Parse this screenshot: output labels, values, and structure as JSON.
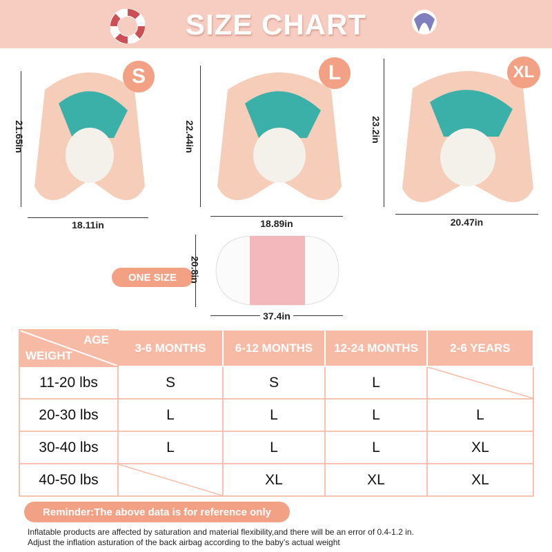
{
  "header": {
    "title": "SIZE CHART",
    "left_icon": "life-ring-icon",
    "right_icon": "beach-ball-icon"
  },
  "colors": {
    "banner": "#f7cdc1",
    "accent": "#f3a184",
    "table_border": "#f7c2b0"
  },
  "products": [
    {
      "size": "S",
      "height": "21.65in",
      "width": "18.11in"
    },
    {
      "size": "L",
      "height": "22.44in",
      "width": "18.89in"
    },
    {
      "size": "XL",
      "height": "23.2in",
      "width": "20.47in"
    }
  ],
  "backrest": {
    "label": "ONE SIZE",
    "height": "20.8in",
    "width": "37.4in"
  },
  "table": {
    "corner_top": "AGE",
    "corner_bottom": "WEIGHT",
    "columns": [
      "3-6 MONTHS",
      "6-12 MONTHS",
      "12-24 MONTHS",
      "2-6 YEARS"
    ],
    "rows": [
      {
        "weight": "11-20 lbs",
        "cells": [
          "S",
          "S",
          "L",
          ""
        ]
      },
      {
        "weight": "20-30 lbs",
        "cells": [
          "L",
          "L",
          "L",
          "L"
        ]
      },
      {
        "weight": "30-40 lbs",
        "cells": [
          "L",
          "L",
          "L",
          "XL"
        ]
      },
      {
        "weight": "40-50 lbs",
        "cells": [
          "",
          "XL",
          "XL",
          "XL"
        ]
      }
    ]
  },
  "reminder": "Reminder:The above data is for reference only",
  "notes": [
    "Inflatable products are affected by saturation and material flexibility,and there will be an error of 0.4-1.2 in.",
    "Adjust the inflation asturation of the back airbag according to the baby’s actual weight"
  ]
}
